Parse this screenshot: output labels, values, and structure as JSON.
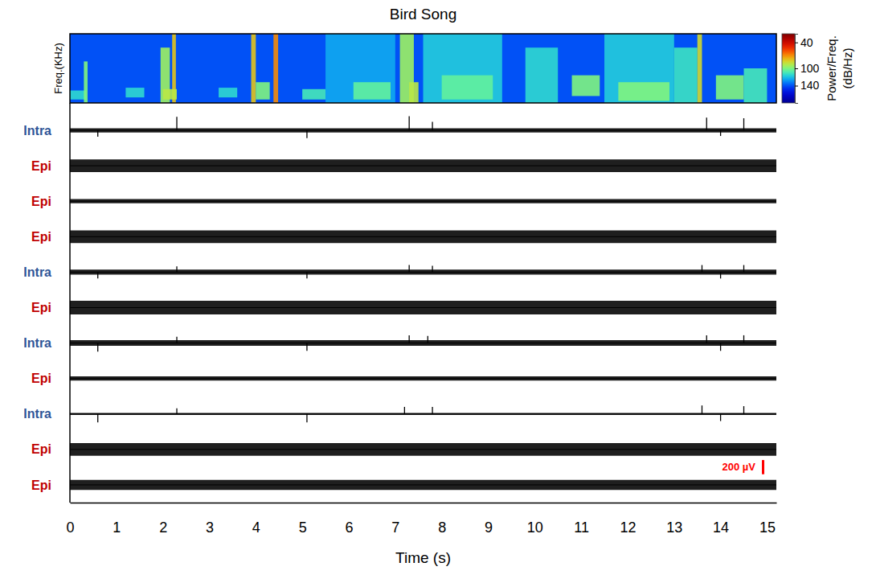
{
  "chart_data": {
    "type": "multi-trace",
    "title": "Bird Song",
    "x_label": "Time (s)",
    "xlim": [
      0,
      15.2
    ],
    "xticks": [
      0,
      1,
      2,
      3,
      4,
      5,
      6,
      7,
      8,
      9,
      10,
      11,
      12,
      13,
      14,
      15
    ],
    "spectrogram": {
      "y_label": "Freq.(KHz)",
      "ylim": [
        0,
        10
      ],
      "tick_labels": false,
      "background": 140,
      "cells": [
        {
          "t0": 0.0,
          "t1": 0.35,
          "f0": 0.5,
          "f1": 1.8,
          "power": 115
        },
        {
          "t0": 0.3,
          "t1": 0.38,
          "f0": 0,
          "f1": 6,
          "power": 100
        },
        {
          "t0": 1.2,
          "t1": 1.6,
          "f0": 0.8,
          "f1": 2.2,
          "power": 115
        },
        {
          "t0": 1.95,
          "t1": 2.15,
          "f0": 0,
          "f1": 8,
          "power": 95
        },
        {
          "t0": 2.2,
          "t1": 2.28,
          "f0": 0,
          "f1": 10,
          "power": 80
        },
        {
          "t0": 2.0,
          "t1": 2.3,
          "f0": 0.5,
          "f1": 2,
          "power": 90
        },
        {
          "t0": 3.2,
          "t1": 3.6,
          "f0": 0.8,
          "f1": 2.2,
          "power": 115
        },
        {
          "t0": 3.9,
          "t1": 4.0,
          "f0": 0,
          "f1": 10,
          "power": 80
        },
        {
          "t0": 4.0,
          "t1": 4.3,
          "f0": 0.5,
          "f1": 3,
          "power": 100
        },
        {
          "t0": 4.38,
          "t1": 4.48,
          "f0": 0,
          "f1": 10,
          "power": 70
        },
        {
          "t0": 5.0,
          "t1": 5.5,
          "f0": 0.5,
          "f1": 2,
          "power": 110
        },
        {
          "t0": 5.5,
          "t1": 7.0,
          "f0": 0,
          "f1": 10,
          "power": 125
        },
        {
          "t0": 6.1,
          "t1": 6.9,
          "f0": 0.5,
          "f1": 3,
          "power": 105
        },
        {
          "t0": 7.1,
          "t1": 7.4,
          "f0": 0,
          "f1": 10,
          "power": 95
        },
        {
          "t0": 7.3,
          "t1": 7.5,
          "f0": 0,
          "f1": 3,
          "power": 90
        },
        {
          "t0": 7.6,
          "t1": 9.3,
          "f0": 0,
          "f1": 10,
          "power": 118
        },
        {
          "t0": 8.0,
          "t1": 9.1,
          "f0": 0.5,
          "f1": 4,
          "power": 105
        },
        {
          "t0": 9.8,
          "t1": 10.5,
          "f0": 0,
          "f1": 8,
          "power": 115
        },
        {
          "t0": 10.8,
          "t1": 11.4,
          "f0": 1,
          "f1": 4,
          "power": 100
        },
        {
          "t0": 11.5,
          "t1": 13.0,
          "f0": 0,
          "f1": 10,
          "power": 118
        },
        {
          "t0": 11.8,
          "t1": 12.9,
          "f0": 0.3,
          "f1": 3,
          "power": 100
        },
        {
          "t0": 13.0,
          "t1": 13.5,
          "f0": 0,
          "f1": 8,
          "power": 112
        },
        {
          "t0": 13.5,
          "t1": 13.6,
          "f0": 0,
          "f1": 10,
          "power": 85
        },
        {
          "t0": 13.9,
          "t1": 14.5,
          "f0": 0.5,
          "f1": 4,
          "power": 100
        },
        {
          "t0": 14.5,
          "t1": 15.0,
          "f0": 0,
          "f1": 5,
          "power": 110
        }
      ],
      "colorbar": {
        "label": [
          "Power/Freq.",
          "(dB/Hz)"
        ],
        "lim": [
          20,
          180
        ],
        "ticks": [
          40,
          100,
          140
        ]
      }
    },
    "trace_ylim": [
      -250,
      250
    ],
    "traces": [
      {
        "name": "Intra",
        "color": "#2f5597",
        "noise": 30,
        "spikes": [
          {
            "t": 0.6,
            "amp": -90
          },
          {
            "t": 2.3,
            "amp": 190
          },
          {
            "t": 5.1,
            "amp": -110
          },
          {
            "t": 7.3,
            "amp": 200
          },
          {
            "t": 7.8,
            "amp": 120
          },
          {
            "t": 13.7,
            "amp": 180
          },
          {
            "t": 14.0,
            "amp": -80
          },
          {
            "t": 14.5,
            "amp": 170
          }
        ]
      },
      {
        "name": "Epi",
        "color": "#c00000",
        "noise": 90,
        "spikes": []
      },
      {
        "name": "Epi",
        "color": "#c00000",
        "noise": 30,
        "spikes": []
      },
      {
        "name": "Epi",
        "color": "#c00000",
        "noise": 90,
        "spikes": []
      },
      {
        "name": "Intra",
        "color": "#2f5597",
        "noise": 35,
        "spikes": [
          {
            "t": 0.6,
            "amp": -90
          },
          {
            "t": 2.3,
            "amp": 80
          },
          {
            "t": 5.1,
            "amp": -90
          },
          {
            "t": 7.3,
            "amp": 100
          },
          {
            "t": 7.8,
            "amp": 90
          },
          {
            "t": 13.6,
            "amp": 100
          },
          {
            "t": 14.0,
            "amp": -90
          },
          {
            "t": 14.5,
            "amp": 100
          }
        ]
      },
      {
        "name": "Epi",
        "color": "#c00000",
        "noise": 95,
        "spikes": []
      },
      {
        "name": "Intra",
        "color": "#2f5597",
        "noise": 40,
        "spikes": [
          {
            "t": 0.6,
            "amp": -120
          },
          {
            "t": 2.3,
            "amp": 90
          },
          {
            "t": 5.1,
            "amp": -110
          },
          {
            "t": 7.3,
            "amp": 110
          },
          {
            "t": 7.7,
            "amp": 100
          },
          {
            "t": 13.7,
            "amp": 110
          },
          {
            "t": 14.0,
            "amp": -110
          },
          {
            "t": 14.5,
            "amp": 110
          }
        ]
      },
      {
        "name": "Epi",
        "color": "#c00000",
        "noise": 30,
        "spikes": []
      },
      {
        "name": "Intra",
        "color": "#2f5597",
        "noise": 15,
        "spikes": [
          {
            "t": 0.6,
            "amp": -120
          },
          {
            "t": 2.3,
            "amp": 80
          },
          {
            "t": 5.1,
            "amp": -120
          },
          {
            "t": 7.2,
            "amp": 100
          },
          {
            "t": 7.8,
            "amp": 100
          },
          {
            "t": 13.6,
            "amp": 120
          },
          {
            "t": 14.0,
            "amp": -100
          },
          {
            "t": 14.5,
            "amp": 110
          }
        ]
      },
      {
        "name": "Epi",
        "color": "#c00000",
        "noise": 90,
        "spikes": []
      },
      {
        "name": "Epi",
        "color": "#c00000",
        "noise": 70,
        "spikes": []
      }
    ],
    "scale_bar": {
      "value": 200,
      "label": "200 µV",
      "color": "#ff0000"
    }
  }
}
